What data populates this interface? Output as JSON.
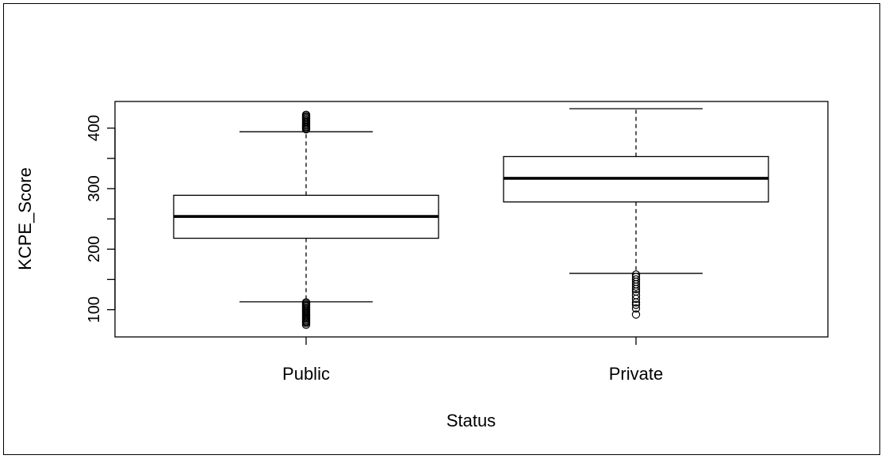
{
  "chart_data": {
    "type": "boxplot",
    "xlabel": "Status",
    "ylabel": "KCPE_Score",
    "categories": [
      "Public",
      "Private"
    ],
    "y_ticks": [
      100,
      200,
      300,
      400
    ],
    "y_tick_labels": [
      "100",
      "200",
      "300",
      "400"
    ],
    "ylim": [
      55,
      444
    ],
    "grid": false,
    "boxes": [
      {
        "category": "Public",
        "whisker_low": 113,
        "q1": 218,
        "median": 254,
        "q3": 289,
        "whisker_high": 394,
        "outliers": [
          75,
          78,
          80,
          82,
          84,
          86,
          88,
          90,
          92,
          94,
          96,
          98,
          100,
          102,
          104,
          106,
          108,
          110,
          112,
          398,
          400,
          402,
          404,
          406,
          408,
          410,
          412,
          414,
          416,
          418,
          420,
          422
        ]
      },
      {
        "category": "Private",
        "whisker_low": 160,
        "q1": 278,
        "median": 317,
        "q3": 353,
        "whisker_high": 432,
        "outliers": [
          92,
          102,
          108,
          112,
          118,
          124,
          130,
          134,
          138,
          142,
          146,
          150,
          154,
          158
        ]
      }
    ],
    "colors": {
      "stroke": "#000000",
      "box_fill": "#ffffff",
      "background": "#ffffff"
    }
  }
}
